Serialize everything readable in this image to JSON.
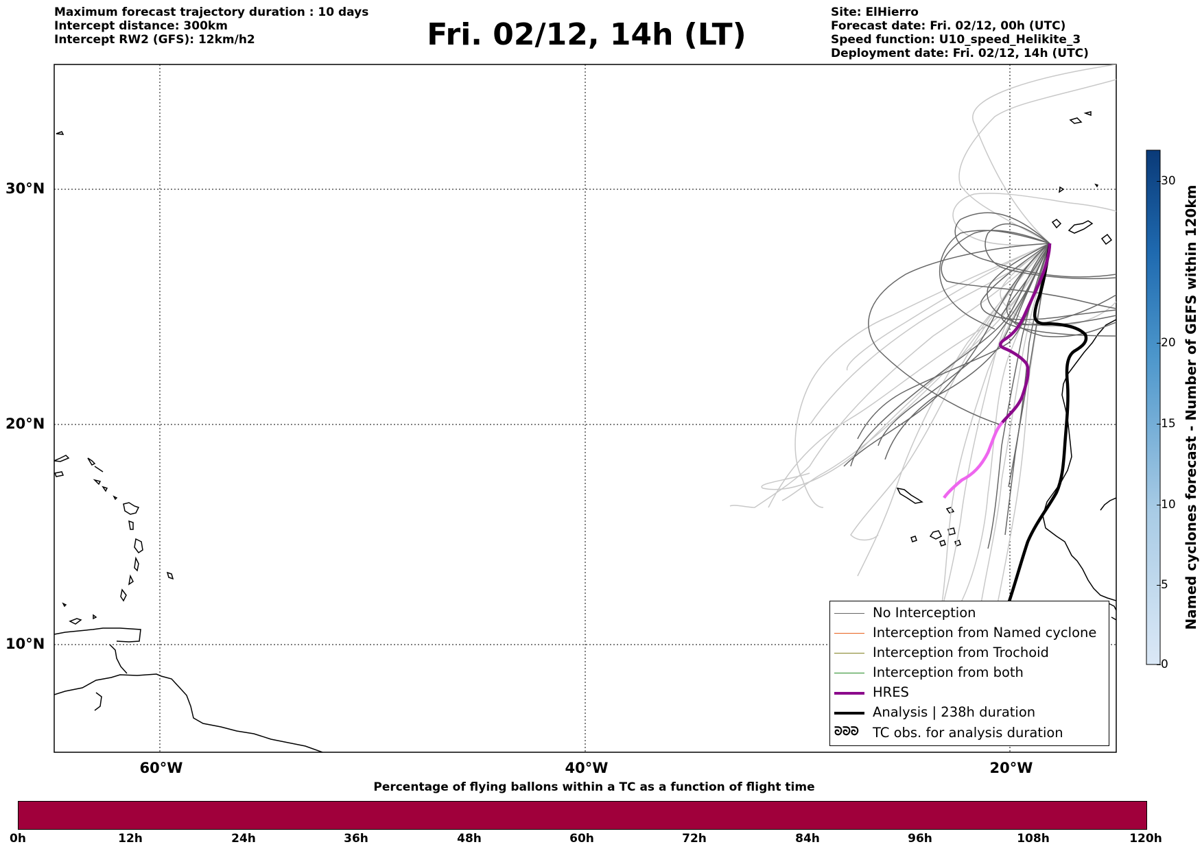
{
  "header": {
    "left_lines": [
      "Maximum forecast trajectory duration : 10 days",
      "Intercept distance: 300km",
      "Intercept RW2 (GFS):  12km/h2"
    ],
    "title": "Fri. 02/12, 14h (LT)",
    "right_lines": [
      "Site: ElHierro",
      "Forecast date: Fri. 02/12, 00h (UTC)",
      "Speed function: U10_speed_Helikite_3",
      "Deployment date: Fri. 02/12, 14h (UTC)"
    ]
  },
  "map": {
    "lat_labels": [
      "30°N",
      "20°N",
      "10°N"
    ],
    "lon_labels": [
      "60°W",
      "40°W",
      "20°W"
    ],
    "colors": {
      "no_interception": "#666666",
      "named_cyclone": "#e8601c",
      "trochoid": "#808020",
      "both": "#228b22",
      "hres": "#8b0a8b",
      "hres_early": "#ee66ee",
      "analysis": "#000000",
      "ensemble_light": "#c8c8c8"
    }
  },
  "legend": {
    "items": [
      {
        "label": "No Interception",
        "style": "thin-gray"
      },
      {
        "label": "Interception from Named cyclone",
        "style": "thin-orange"
      },
      {
        "label": "Interception from Trochoid",
        "style": "thin-olive"
      },
      {
        "label": "Interception from both",
        "style": "thin-green"
      },
      {
        "label": "HRES",
        "style": "thick-purple"
      },
      {
        "label": "Analysis | 238h duration",
        "style": "thick-black"
      },
      {
        "label": "TC obs. for analysis duration",
        "style": "cyclone-glyphs",
        "glyph": "ᘐᘐᘐ"
      }
    ]
  },
  "colorbar_right": {
    "label": "Named cyclones forecast - Number of GEFS within 120km",
    "ticks": [
      "30",
      "20",
      "15",
      "10",
      "5",
      "0"
    ],
    "range": [
      0,
      32
    ]
  },
  "colorbar_bottom": {
    "title": "Percentage of flying ballons within a TC as a function of flight time",
    "ticks": [
      "0h",
      "12h",
      "24h",
      "36h",
      "48h",
      "60h",
      "72h",
      "84h",
      "96h",
      "108h",
      "120h"
    ],
    "fill_color": "#a0003b"
  }
}
